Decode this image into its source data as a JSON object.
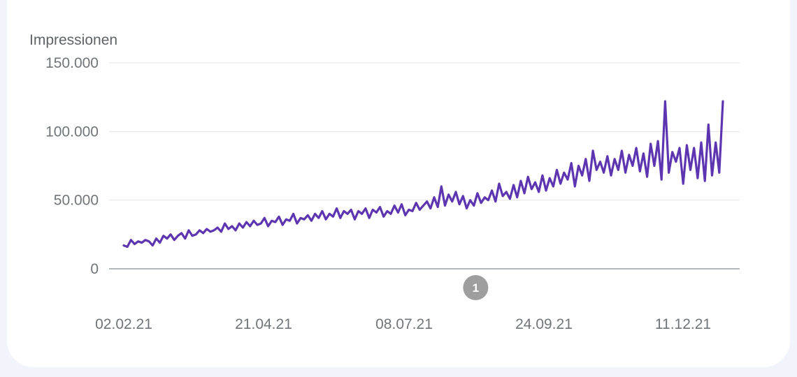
{
  "chart_data": {
    "type": "line",
    "title": "",
    "xlabel": "",
    "ylabel": "Impressionen",
    "ylim": [
      0,
      150000
    ],
    "y_ticks": [
      {
        "value": 0,
        "label": "0"
      },
      {
        "value": 50000,
        "label": "50.000"
      },
      {
        "value": 100000,
        "label": "100.000"
      },
      {
        "value": 150000,
        "label": "150.000"
      }
    ],
    "x_tick_labels": [
      "02.02.21",
      "21.04.21",
      "08.07.21",
      "24.09.21",
      "11.12.21"
    ],
    "x_range": [
      "2021-02-02",
      "2021-12-31"
    ],
    "grid": true,
    "legend": "none",
    "color": "#5e35b1",
    "annotations": [
      {
        "label": "1",
        "date": "2021-08-16"
      }
    ],
    "series": [
      {
        "name": "",
        "x": [
          "2021-02-02",
          "2021-02-04",
          "2021-02-06",
          "2021-02-08",
          "2021-02-10",
          "2021-02-12",
          "2021-02-14",
          "2021-02-16",
          "2021-02-18",
          "2021-02-20",
          "2021-02-22",
          "2021-02-24",
          "2021-02-26",
          "2021-02-28",
          "2021-03-02",
          "2021-03-04",
          "2021-03-06",
          "2021-03-08",
          "2021-03-10",
          "2021-03-12",
          "2021-03-14",
          "2021-03-16",
          "2021-03-18",
          "2021-03-20",
          "2021-03-22",
          "2021-03-24",
          "2021-03-26",
          "2021-03-28",
          "2021-03-30",
          "2021-04-01",
          "2021-04-03",
          "2021-04-05",
          "2021-04-07",
          "2021-04-09",
          "2021-04-11",
          "2021-04-13",
          "2021-04-15",
          "2021-04-17",
          "2021-04-19",
          "2021-04-21",
          "2021-04-23",
          "2021-04-25",
          "2021-04-27",
          "2021-04-29",
          "2021-05-01",
          "2021-05-03",
          "2021-05-05",
          "2021-05-07",
          "2021-05-09",
          "2021-05-11",
          "2021-05-13",
          "2021-05-15",
          "2021-05-17",
          "2021-05-19",
          "2021-05-21",
          "2021-05-23",
          "2021-05-25",
          "2021-05-27",
          "2021-05-29",
          "2021-05-31",
          "2021-06-02",
          "2021-06-04",
          "2021-06-06",
          "2021-06-08",
          "2021-06-10",
          "2021-06-12",
          "2021-06-14",
          "2021-06-16",
          "2021-06-18",
          "2021-06-20",
          "2021-06-22",
          "2021-06-24",
          "2021-06-26",
          "2021-06-28",
          "2021-06-30",
          "2021-07-02",
          "2021-07-04",
          "2021-07-06",
          "2021-07-08",
          "2021-07-10",
          "2021-07-12",
          "2021-07-14",
          "2021-07-16",
          "2021-07-18",
          "2021-07-20",
          "2021-07-22",
          "2021-07-24",
          "2021-07-26",
          "2021-07-28",
          "2021-07-30",
          "2021-08-01",
          "2021-08-03",
          "2021-08-05",
          "2021-08-07",
          "2021-08-09",
          "2021-08-11",
          "2021-08-13",
          "2021-08-15",
          "2021-08-17",
          "2021-08-19",
          "2021-08-21",
          "2021-08-23",
          "2021-08-25",
          "2021-08-27",
          "2021-08-29",
          "2021-08-31",
          "2021-09-02",
          "2021-09-04",
          "2021-09-06",
          "2021-09-08",
          "2021-09-10",
          "2021-09-12",
          "2021-09-14",
          "2021-09-16",
          "2021-09-18",
          "2021-09-20",
          "2021-09-22",
          "2021-09-24",
          "2021-09-26",
          "2021-09-28",
          "2021-09-30",
          "2021-10-02",
          "2021-10-04",
          "2021-10-06",
          "2021-10-08",
          "2021-10-10",
          "2021-10-12",
          "2021-10-14",
          "2021-10-16",
          "2021-10-18",
          "2021-10-20",
          "2021-10-22",
          "2021-10-24",
          "2021-10-26",
          "2021-10-28",
          "2021-10-30",
          "2021-11-01",
          "2021-11-03",
          "2021-11-05",
          "2021-11-07",
          "2021-11-09",
          "2021-11-11",
          "2021-11-13",
          "2021-11-15",
          "2021-11-17",
          "2021-11-19",
          "2021-11-21",
          "2021-11-23",
          "2021-11-25",
          "2021-11-27",
          "2021-11-29",
          "2021-12-01",
          "2021-12-03",
          "2021-12-05",
          "2021-12-07",
          "2021-12-09",
          "2021-12-11",
          "2021-12-13",
          "2021-12-15",
          "2021-12-17",
          "2021-12-19",
          "2021-12-21",
          "2021-12-23",
          "2021-12-25",
          "2021-12-27",
          "2021-12-29",
          "2021-12-31"
        ],
        "values": [
          17000,
          16000,
          21000,
          18000,
          20000,
          19000,
          21000,
          20000,
          17000,
          22000,
          19000,
          24000,
          22000,
          25000,
          21000,
          24000,
          26000,
          22000,
          28000,
          24000,
          25000,
          28000,
          26000,
          29000,
          27000,
          28000,
          30000,
          27000,
          33000,
          29000,
          31000,
          28000,
          33000,
          30000,
          34000,
          31000,
          35000,
          32000,
          33000,
          37000,
          31000,
          35000,
          34000,
          38000,
          32000,
          36000,
          35000,
          40000,
          33000,
          37000,
          36000,
          39000,
          35000,
          40000,
          37000,
          42000,
          36000,
          40000,
          38000,
          44000,
          37000,
          42000,
          40000,
          43000,
          36000,
          42000,
          40000,
          44000,
          37000,
          43000,
          41000,
          45000,
          38000,
          42000,
          40000,
          46000,
          41000,
          47000,
          39000,
          43000,
          42000,
          48000,
          43000,
          46000,
          49000,
          44000,
          52000,
          45000,
          60000,
          46000,
          54000,
          49000,
          56000,
          47000,
          53000,
          44000,
          50000,
          46000,
          55000,
          48000,
          52000,
          50000,
          57000,
          49000,
          62000,
          53000,
          56000,
          51000,
          61000,
          52000,
          64000,
          55000,
          67000,
          58000,
          63000,
          56000,
          68000,
          57000,
          66000,
          60000,
          72000,
          62000,
          70000,
          65000,
          77000,
          60000,
          75000,
          68000,
          80000,
          64000,
          86000,
          72000,
          78000,
          70000,
          82000,
          68000,
          80000,
          72000,
          86000,
          70000,
          83000,
          75000,
          88000,
          71000,
          84000,
          67000,
          91000,
          75000,
          93000,
          65000,
          122000,
          70000,
          85000,
          78000,
          88000,
          62000,
          90000,
          72000,
          88000,
          66000,
          92000,
          64000,
          105000,
          68000,
          92000,
          70000,
          122000
        ]
      }
    ]
  }
}
